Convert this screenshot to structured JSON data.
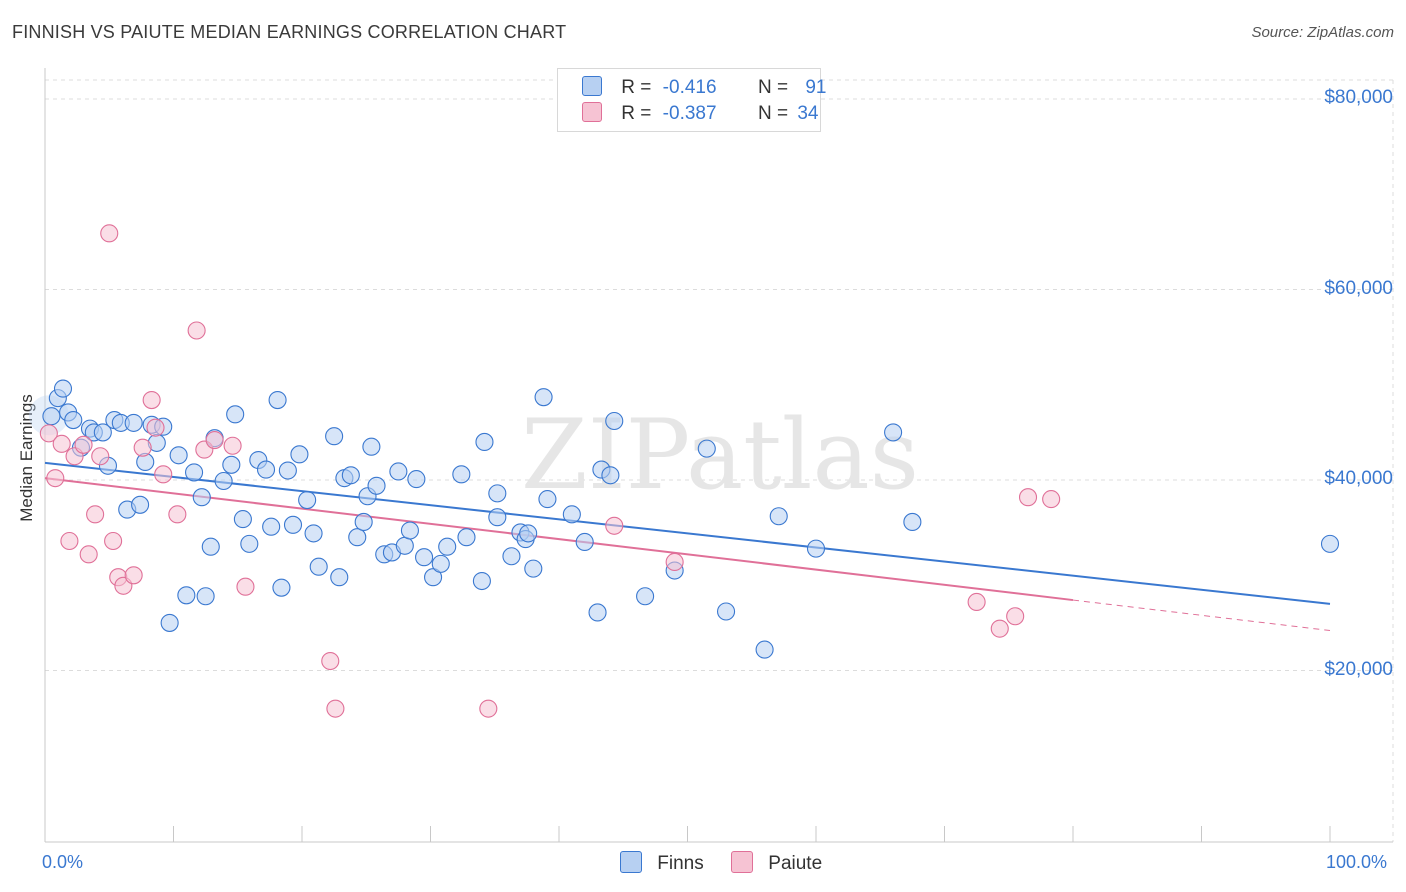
{
  "title": "FINNISH VS PAIUTE MEDIAN EARNINGS CORRELATION CHART",
  "source": "Source: ZipAtlas.com",
  "watermark": "ZIPatlas",
  "colors": {
    "finns": "#3a78d0",
    "finns_fill": "#b7d0f2",
    "paiute": "#e07098",
    "paiute_fill": "#f6c3d3"
  },
  "legend": {
    "finns": {
      "r_label": "R =",
      "r_value": "-0.416",
      "n_label": "N =",
      "n_value": "91"
    },
    "paiute": {
      "r_label": "R =",
      "r_value": "-0.387",
      "n_label": "N =",
      "n_value": "34"
    }
  },
  "bottom_legend": {
    "finns": "Finns",
    "paiute": "Paiute"
  },
  "chart_data": {
    "type": "scatter",
    "title": "FINNISH VS PAIUTE MEDIAN EARNINGS CORRELATION CHART",
    "xlabel": "",
    "ylabel": "Median Earnings",
    "xlim": [
      0,
      100
    ],
    "ylim": [
      2000,
      82000
    ],
    "x_tick_labels": [
      "0.0%",
      "100.0%"
    ],
    "y_ticks": [
      20000,
      40000,
      60000,
      80000
    ],
    "y_tick_labels": [
      "$20,000",
      "$40,000",
      "$60,000",
      "$80,000"
    ],
    "grid": "horizontal dashed",
    "series": [
      {
        "name": "Finns",
        "r": -0.416,
        "n": 91,
        "trend": {
          "x": [
            0,
            100
          ],
          "y": [
            41800,
            27000
          ]
        },
        "points": [
          [
            0.5,
            46.7
          ],
          [
            1,
            48.6
          ],
          [
            1.4,
            49.6
          ],
          [
            1.8,
            47.1
          ],
          [
            2.2,
            46.3
          ],
          [
            2.8,
            43.4
          ],
          [
            3.5,
            45.4
          ],
          [
            3.8,
            45
          ],
          [
            4.5,
            45
          ],
          [
            4.9,
            41.5
          ],
          [
            5.4,
            46.3
          ],
          [
            5.9,
            46
          ],
          [
            6.4,
            36.9
          ],
          [
            6.9,
            46
          ],
          [
            7.4,
            37.4
          ],
          [
            7.8,
            41.9
          ],
          [
            8.3,
            45.8
          ],
          [
            8.7,
            43.9
          ],
          [
            9.2,
            45.6
          ],
          [
            9.7,
            25
          ],
          [
            10.4,
            42.6
          ],
          [
            11,
            27.9
          ],
          [
            11.6,
            40.8
          ],
          [
            12.2,
            38.2
          ],
          [
            12.5,
            27.8
          ],
          [
            12.9,
            33
          ],
          [
            13.2,
            44.4
          ],
          [
            13.9,
            39.9
          ],
          [
            14.5,
            41.6
          ],
          [
            14.8,
            46.9
          ],
          [
            15.4,
            35.9
          ],
          [
            15.9,
            33.3
          ],
          [
            16.6,
            42.1
          ],
          [
            17.2,
            41.1
          ],
          [
            17.6,
            35.1
          ],
          [
            18.1,
            48.4
          ],
          [
            18.4,
            28.7
          ],
          [
            18.9,
            41
          ],
          [
            19.3,
            35.3
          ],
          [
            19.8,
            42.7
          ],
          [
            20.4,
            37.9
          ],
          [
            20.9,
            34.4
          ],
          [
            21.3,
            30.9
          ],
          [
            22.5,
            44.6
          ],
          [
            22.9,
            29.8
          ],
          [
            23.3,
            40.2
          ],
          [
            23.8,
            40.5
          ],
          [
            24.3,
            34
          ],
          [
            24.8,
            35.6
          ],
          [
            25.1,
            38.3
          ],
          [
            25.4,
            43.5
          ],
          [
            25.8,
            39.4
          ],
          [
            26.4,
            32.2
          ],
          [
            27,
            32.4
          ],
          [
            27.5,
            40.9
          ],
          [
            28,
            33.1
          ],
          [
            28.4,
            34.7
          ],
          [
            28.9,
            40.1
          ],
          [
            29.5,
            31.9
          ],
          [
            30.2,
            29.8
          ],
          [
            30.8,
            31.2
          ],
          [
            31.3,
            33
          ],
          [
            32.4,
            40.6
          ],
          [
            32.8,
            34
          ],
          [
            34,
            29.4
          ],
          [
            34.2,
            44
          ],
          [
            35.2,
            38.6
          ],
          [
            35.2,
            36.1
          ],
          [
            36.3,
            32
          ],
          [
            37,
            34.5
          ],
          [
            37.4,
            33.8
          ],
          [
            37.6,
            34.4
          ],
          [
            38,
            30.7
          ],
          [
            38.8,
            48.7
          ],
          [
            39.1,
            38
          ],
          [
            41,
            36.4
          ],
          [
            42,
            33.5
          ],
          [
            43,
            26.1
          ],
          [
            43.3,
            41.1
          ],
          [
            44,
            40.5
          ],
          [
            44.3,
            46.2
          ],
          [
            46.7,
            27.8
          ],
          [
            49,
            30.5
          ],
          [
            51.5,
            43.3
          ],
          [
            53,
            26.2
          ],
          [
            56,
            22.2
          ],
          [
            57.1,
            36.2
          ],
          [
            60,
            32.8
          ],
          [
            66,
            45
          ],
          [
            67.5,
            35.6
          ],
          [
            100,
            33.3
          ]
        ]
      },
      {
        "name": "Paiute",
        "r": -0.387,
        "n": 34,
        "trend": {
          "x": [
            0,
            80
          ],
          "y": [
            40200,
            27400
          ]
        },
        "trend_extension": {
          "x": [
            80,
            100
          ],
          "y": [
            27400,
            24200
          ]
        },
        "points": [
          [
            0.3,
            44.9
          ],
          [
            0.8,
            40.2
          ],
          [
            1.3,
            43.8
          ],
          [
            1.9,
            33.6
          ],
          [
            2.3,
            42.5
          ],
          [
            3,
            43.7
          ],
          [
            3.4,
            32.2
          ],
          [
            3.9,
            36.4
          ],
          [
            4.3,
            42.5
          ],
          [
            5,
            65.9
          ],
          [
            5.3,
            33.6
          ],
          [
            5.7,
            29.8
          ],
          [
            6.1,
            28.9
          ],
          [
            6.9,
            30
          ],
          [
            7.6,
            43.4
          ],
          [
            8.3,
            48.4
          ],
          [
            8.6,
            45.5
          ],
          [
            9.2,
            40.6
          ],
          [
            10.3,
            36.4
          ],
          [
            11.8,
            55.7
          ],
          [
            12.4,
            43.2
          ],
          [
            13.2,
            44.2
          ],
          [
            14.6,
            43.6
          ],
          [
            15.6,
            28.8
          ],
          [
            22.2,
            21
          ],
          [
            22.6,
            16
          ],
          [
            34.5,
            16
          ],
          [
            44.3,
            35.2
          ],
          [
            49,
            31.4
          ],
          [
            72.5,
            27.2
          ],
          [
            74.3,
            24.4
          ],
          [
            75.5,
            25.7
          ],
          [
            76.5,
            38.2
          ],
          [
            78.3,
            38
          ]
        ]
      }
    ]
  }
}
